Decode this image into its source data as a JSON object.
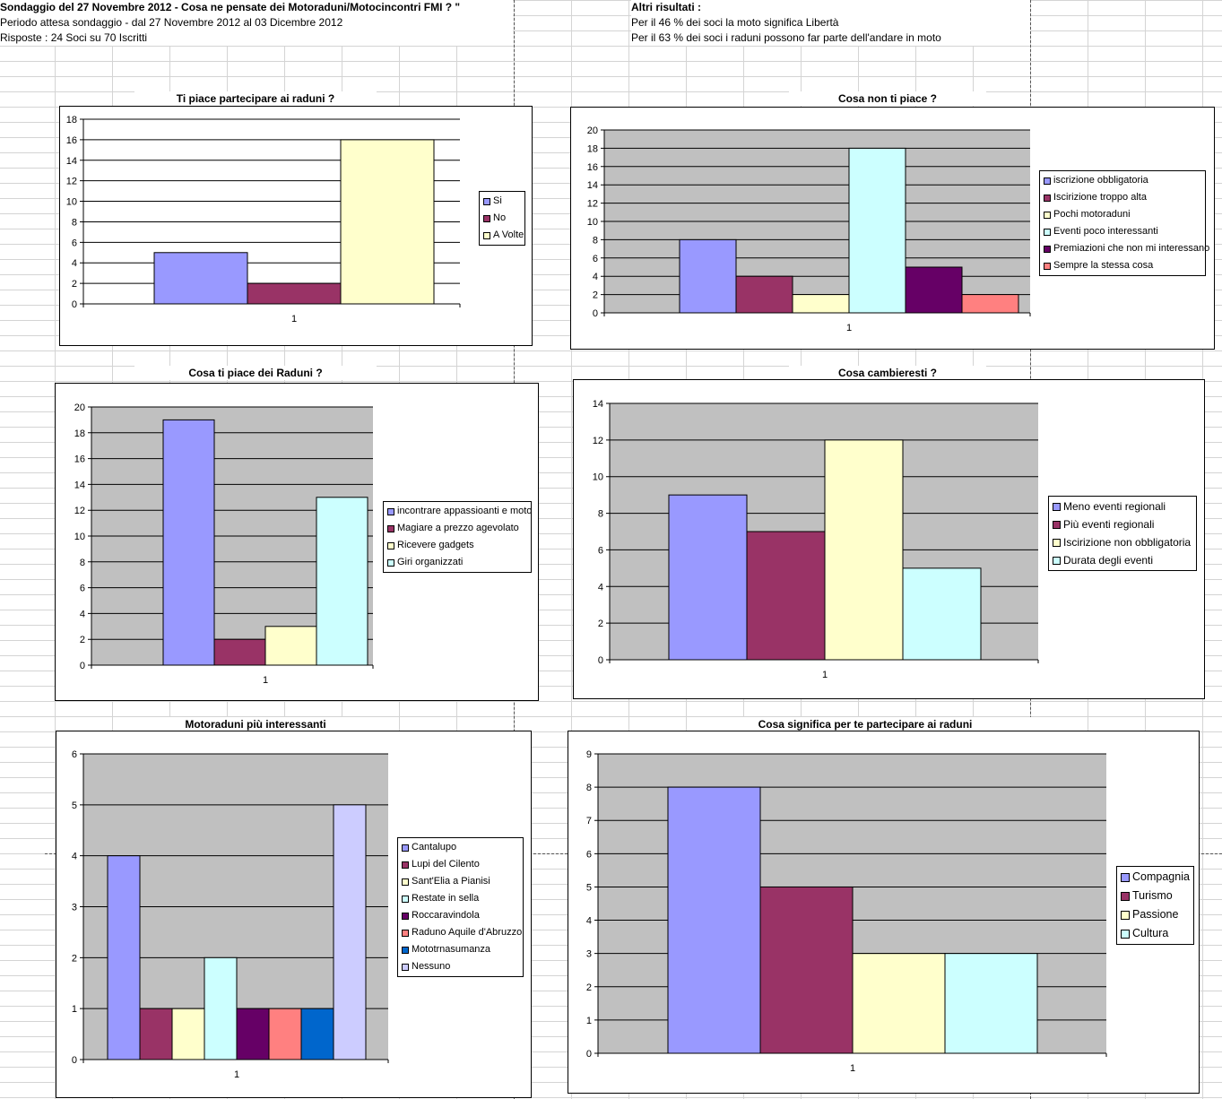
{
  "header": {
    "title": "Sondaggio del 27 Novembre 2012 - Cosa ne pensate dei Motoraduni/Motocincontri FMI ? \"",
    "period": "Periodo attesa sondaggio - dal 27 Novembre 2012 al 03 Dicembre 2012",
    "responses": "Risposte : 24 Soci su 70 Iscritti"
  },
  "other_results": {
    "title": "Altri risultati :",
    "line1": "Per il 46 % dei soci la moto significa Libertà",
    "line2": "Per il 63 % dei soci i raduni possono far parte dell'andare in moto"
  },
  "chart_data": [
    {
      "type": "bar",
      "title": "Ti piace partecipare ai raduni ?",
      "categories": [
        "1"
      ],
      "series": [
        {
          "name": "Si",
          "values": [
            5
          ],
          "color": "#9999FF"
        },
        {
          "name": "No",
          "values": [
            2
          ],
          "color": "#993366"
        },
        {
          "name": "A Volte",
          "values": [
            16
          ],
          "color": "#FFFFCC"
        }
      ],
      "ylim": [
        0,
        18
      ],
      "ystep": 2,
      "plot_bg": "#FFFFFF",
      "grid": true,
      "legend": "right"
    },
    {
      "type": "bar",
      "title": "Cosa non ti piace ?",
      "categories": [
        "1"
      ],
      "series": [
        {
          "name": "iscrizione obbligatoria",
          "values": [
            8
          ],
          "color": "#9999FF"
        },
        {
          "name": "Iscirizione troppo alta",
          "values": [
            4
          ],
          "color": "#993366"
        },
        {
          "name": "Pochi motoraduni",
          "values": [
            2
          ],
          "color": "#FFFFCC"
        },
        {
          "name": "Eventi poco interessanti",
          "values": [
            18
          ],
          "color": "#CCFFFF"
        },
        {
          "name": "Premiazioni che non mi interessano",
          "values": [
            5
          ],
          "color": "#660066"
        },
        {
          "name": "Sempre la stessa cosa",
          "values": [
            2
          ],
          "color": "#FF8080"
        }
      ],
      "ylim": [
        0,
        20
      ],
      "ystep": 2,
      "plot_bg": "#C0C0C0",
      "grid": true,
      "legend": "right"
    },
    {
      "type": "bar",
      "title": "Cosa ti piace dei Raduni ?",
      "categories": [
        "1"
      ],
      "series": [
        {
          "name": "incontrare appassioanti e moto",
          "values": [
            19
          ],
          "color": "#9999FF"
        },
        {
          "name": "Magiare a prezzo agevolato",
          "values": [
            2
          ],
          "color": "#993366"
        },
        {
          "name": "Ricevere gadgets",
          "values": [
            3
          ],
          "color": "#FFFFCC"
        },
        {
          "name": "Giri organizzati",
          "values": [
            13
          ],
          "color": "#CCFFFF"
        }
      ],
      "ylim": [
        0,
        20
      ],
      "ystep": 2,
      "plot_bg": "#C0C0C0",
      "grid": true,
      "legend": "right"
    },
    {
      "type": "bar",
      "title": "Cosa cambieresti ?",
      "categories": [
        "1"
      ],
      "series": [
        {
          "name": "Meno eventi regionali",
          "values": [
            9
          ],
          "color": "#9999FF"
        },
        {
          "name": "Più eventi regionali",
          "values": [
            7
          ],
          "color": "#993366"
        },
        {
          "name": "Iscirizione non obbligatoria",
          "values": [
            12
          ],
          "color": "#FFFFCC"
        },
        {
          "name": "Durata degli eventi",
          "values": [
            5
          ],
          "color": "#CCFFFF"
        }
      ],
      "ylim": [
        0,
        14
      ],
      "ystep": 2,
      "plot_bg": "#C0C0C0",
      "grid": true,
      "legend": "right"
    },
    {
      "type": "bar",
      "title": "Motoraduni più interessanti",
      "categories": [
        "1"
      ],
      "series": [
        {
          "name": "Cantalupo",
          "values": [
            4
          ],
          "color": "#9999FF"
        },
        {
          "name": "Lupi del Cilento",
          "values": [
            1
          ],
          "color": "#993366"
        },
        {
          "name": "Sant'Elia a Pianisi",
          "values": [
            1
          ],
          "color": "#FFFFCC"
        },
        {
          "name": "Restate in sella",
          "values": [
            2
          ],
          "color": "#CCFFFF"
        },
        {
          "name": "Roccaravindola",
          "values": [
            1
          ],
          "color": "#660066"
        },
        {
          "name": "Raduno Aquile d'Abruzzo",
          "values": [
            1
          ],
          "color": "#FF8080"
        },
        {
          "name": "Mototrnasumanza",
          "values": [
            1
          ],
          "color": "#0066CC"
        },
        {
          "name": "Nessuno",
          "values": [
            5
          ],
          "color": "#CCCCFF"
        }
      ],
      "ylim": [
        0,
        6
      ],
      "ystep": 1,
      "plot_bg": "#C0C0C0",
      "grid": true,
      "legend": "right"
    },
    {
      "type": "bar",
      "title": "Cosa significa per te partecipare ai raduni",
      "categories": [
        "1"
      ],
      "series": [
        {
          "name": "Compagnia",
          "values": [
            8
          ],
          "color": "#9999FF"
        },
        {
          "name": "Turismo",
          "values": [
            5
          ],
          "color": "#993366"
        },
        {
          "name": "Passione",
          "values": [
            3
          ],
          "color": "#FFFFCC"
        },
        {
          "name": "Cultura",
          "values": [
            3
          ],
          "color": "#CCFFFF"
        }
      ],
      "ylim": [
        0,
        9
      ],
      "ystep": 1,
      "plot_bg": "#C0C0C0",
      "grid": true,
      "legend": "right"
    }
  ]
}
